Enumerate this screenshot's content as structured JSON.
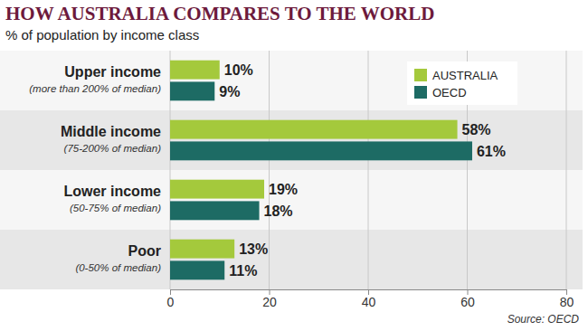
{
  "chart_data": {
    "type": "bar",
    "orientation": "horizontal",
    "title": "HOW AUSTRALIA COMPARES TO THE WORLD",
    "subtitle": "% of population by income class",
    "source": "Source: OECD",
    "categories": [
      "Upper income",
      "Middle income",
      "Lower income",
      "Poor"
    ],
    "category_notes": [
      "(more than 200% of median)",
      "(75-200% of median)",
      "(50-75% of median)",
      "(0-50% of median)"
    ],
    "series": [
      {
        "name": "AUSTRALIA",
        "color": "#a4c93c",
        "values": [
          10,
          58,
          19,
          13
        ],
        "value_labels": [
          "10%",
          "58%",
          "19%",
          "13%"
        ]
      },
      {
        "name": "OECD",
        "color": "#1d6b64",
        "values": [
          9,
          61,
          18,
          11
        ],
        "value_labels": [
          "9%",
          "61%",
          "18%",
          "11%"
        ]
      }
    ],
    "xlim": [
      0,
      80
    ],
    "xticks": [
      0,
      20,
      40,
      60,
      80
    ],
    "grid": true,
    "legend": "upper right",
    "data_labels": true
  }
}
